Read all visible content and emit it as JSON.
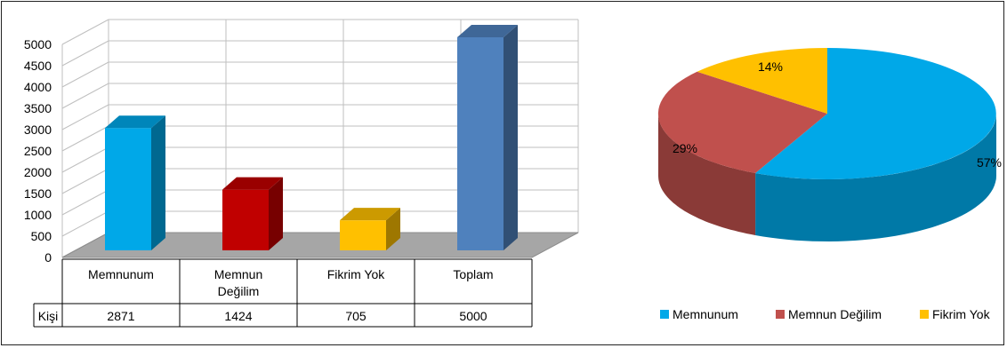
{
  "colors": {
    "memnunum": "#00a8e8",
    "memnun_degilim": "#c0504d",
    "fikrim_yok": "#ffc000",
    "toplam": "#4f81bd",
    "bar_red": "#c00000",
    "floor": "#a6a6a6"
  },
  "chart_data": [
    {
      "type": "bar",
      "categories": [
        "Memnunum",
        "Memnun\nDeğilim",
        "Fikrim Yok",
        "Toplam"
      ],
      "series": [
        {
          "name": "Kişi",
          "values": [
            2871,
            1424,
            705,
            5000
          ]
        }
      ],
      "ylim": [
        0,
        5000
      ],
      "yticks": [
        "0",
        "500",
        "1000",
        "1500",
        "2000",
        "2500",
        "3000",
        "3500",
        "4000",
        "4500",
        "5000"
      ],
      "grid": true,
      "data_table": {
        "row_label": "Kişi",
        "values": [
          "2871",
          "1424",
          "705",
          "5000"
        ]
      }
    },
    {
      "type": "pie",
      "categories": [
        "Memnunum",
        "Memnun Değilim",
        "Fikrim Yok"
      ],
      "values": [
        57,
        29,
        14
      ],
      "labels": [
        "57%",
        "29%",
        "14%"
      ],
      "legend": {
        "position": "bottom",
        "entries": [
          "Memnunum",
          "Memnun Değilim",
          "Fikrim Yok"
        ]
      }
    }
  ]
}
